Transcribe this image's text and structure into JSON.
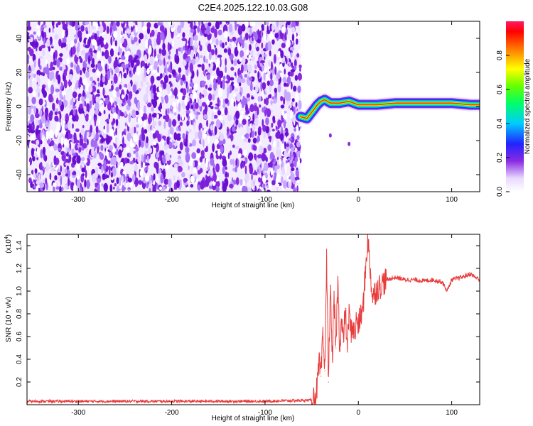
{
  "title": "C2E4.2025.122.10.03.G08",
  "chart_data": [
    {
      "type": "heatmap",
      "title": "C2E4.2025.122.10.03.G08",
      "xlabel": "Height of straight line (km)",
      "ylabel": "Frequency (Hz)",
      "xlim": [
        -355,
        130
      ],
      "ylim": [
        -50,
        50
      ],
      "x_ticks": [
        -300,
        -200,
        -100,
        0,
        100
      ],
      "y_ticks": [
        -40,
        -20,
        0,
        20,
        40
      ],
      "x_tick_labels": [
        "-300",
        "-200",
        "-100",
        "0",
        "100"
      ],
      "y_tick_labels": [
        "-40",
        "-20",
        "0",
        "20",
        "40"
      ],
      "noise_region_x": [
        -355,
        -62
      ],
      "ridge": {
        "x": [
          -62,
          -55,
          -48,
          -44,
          -40,
          -36,
          -30,
          -20,
          -10,
          0,
          20,
          40,
          60,
          80,
          100,
          120,
          130
        ],
        "frequency": [
          -6,
          -7,
          -2,
          1,
          3,
          4,
          2,
          2,
          3,
          1,
          1,
          2,
          2,
          2,
          2,
          1,
          1
        ]
      },
      "colorbar": {
        "label": "Normalized spectral amplitude",
        "range": [
          0,
          1
        ],
        "ticks": [
          0.0,
          0.2,
          0.4,
          0.6,
          0.8
        ],
        "tick_labels": [
          "0.0",
          "0.2",
          "0.4",
          "0.6",
          "0.8"
        ]
      }
    },
    {
      "type": "line",
      "xlabel": "Height of straight line (km)",
      "ylabel": "SNR (10 * v/v)",
      "y_scale_note": "(x10",
      "y_scale_exp": "4",
      "y_scale_close": ")",
      "xlim": [
        -355,
        130
      ],
      "ylim": [
        0,
        1.5
      ],
      "x_ticks": [
        -300,
        -200,
        -100,
        0,
        100
      ],
      "y_ticks": [
        0.2,
        0.4,
        0.6,
        0.8,
        1.0,
        1.2,
        1.4
      ],
      "x_tick_labels": [
        "-300",
        "-200",
        "-100",
        "0",
        "100"
      ],
      "y_tick_labels": [
        "0.2",
        "0.4",
        "0.6",
        "0.8",
        "1.0",
        "1.2",
        "1.4"
      ],
      "color": "#e83c3c",
      "series": [
        {
          "x": [
            -355,
            -200,
            -100,
            -50,
            -45,
            -42,
            -40,
            -38,
            -36,
            -34,
            -32,
            -30,
            -28,
            -26,
            -24,
            -22,
            -20,
            -18,
            -16,
            -14,
            -12,
            -10,
            -8,
            -6,
            -4,
            -2,
            0,
            5,
            10,
            15,
            20,
            30,
            40,
            50,
            60,
            70,
            80,
            90,
            95,
            100,
            110,
            120,
            130
          ],
          "y": [
            0.03,
            0.03,
            0.03,
            0.04,
            0.1,
            0.35,
            0.25,
            0.6,
            0.3,
            1.28,
            0.2,
            1.05,
            0.4,
            0.9,
            0.5,
            1.1,
            0.5,
            0.75,
            0.55,
            0.85,
            0.5,
            0.8,
            0.65,
            0.7,
            0.6,
            0.75,
            0.7,
            0.85,
            1.47,
            0.95,
            1.02,
            1.1,
            1.12,
            1.1,
            1.1,
            1.09,
            1.1,
            1.08,
            1.0,
            1.1,
            1.12,
            1.15,
            1.1
          ]
        }
      ]
    }
  ]
}
